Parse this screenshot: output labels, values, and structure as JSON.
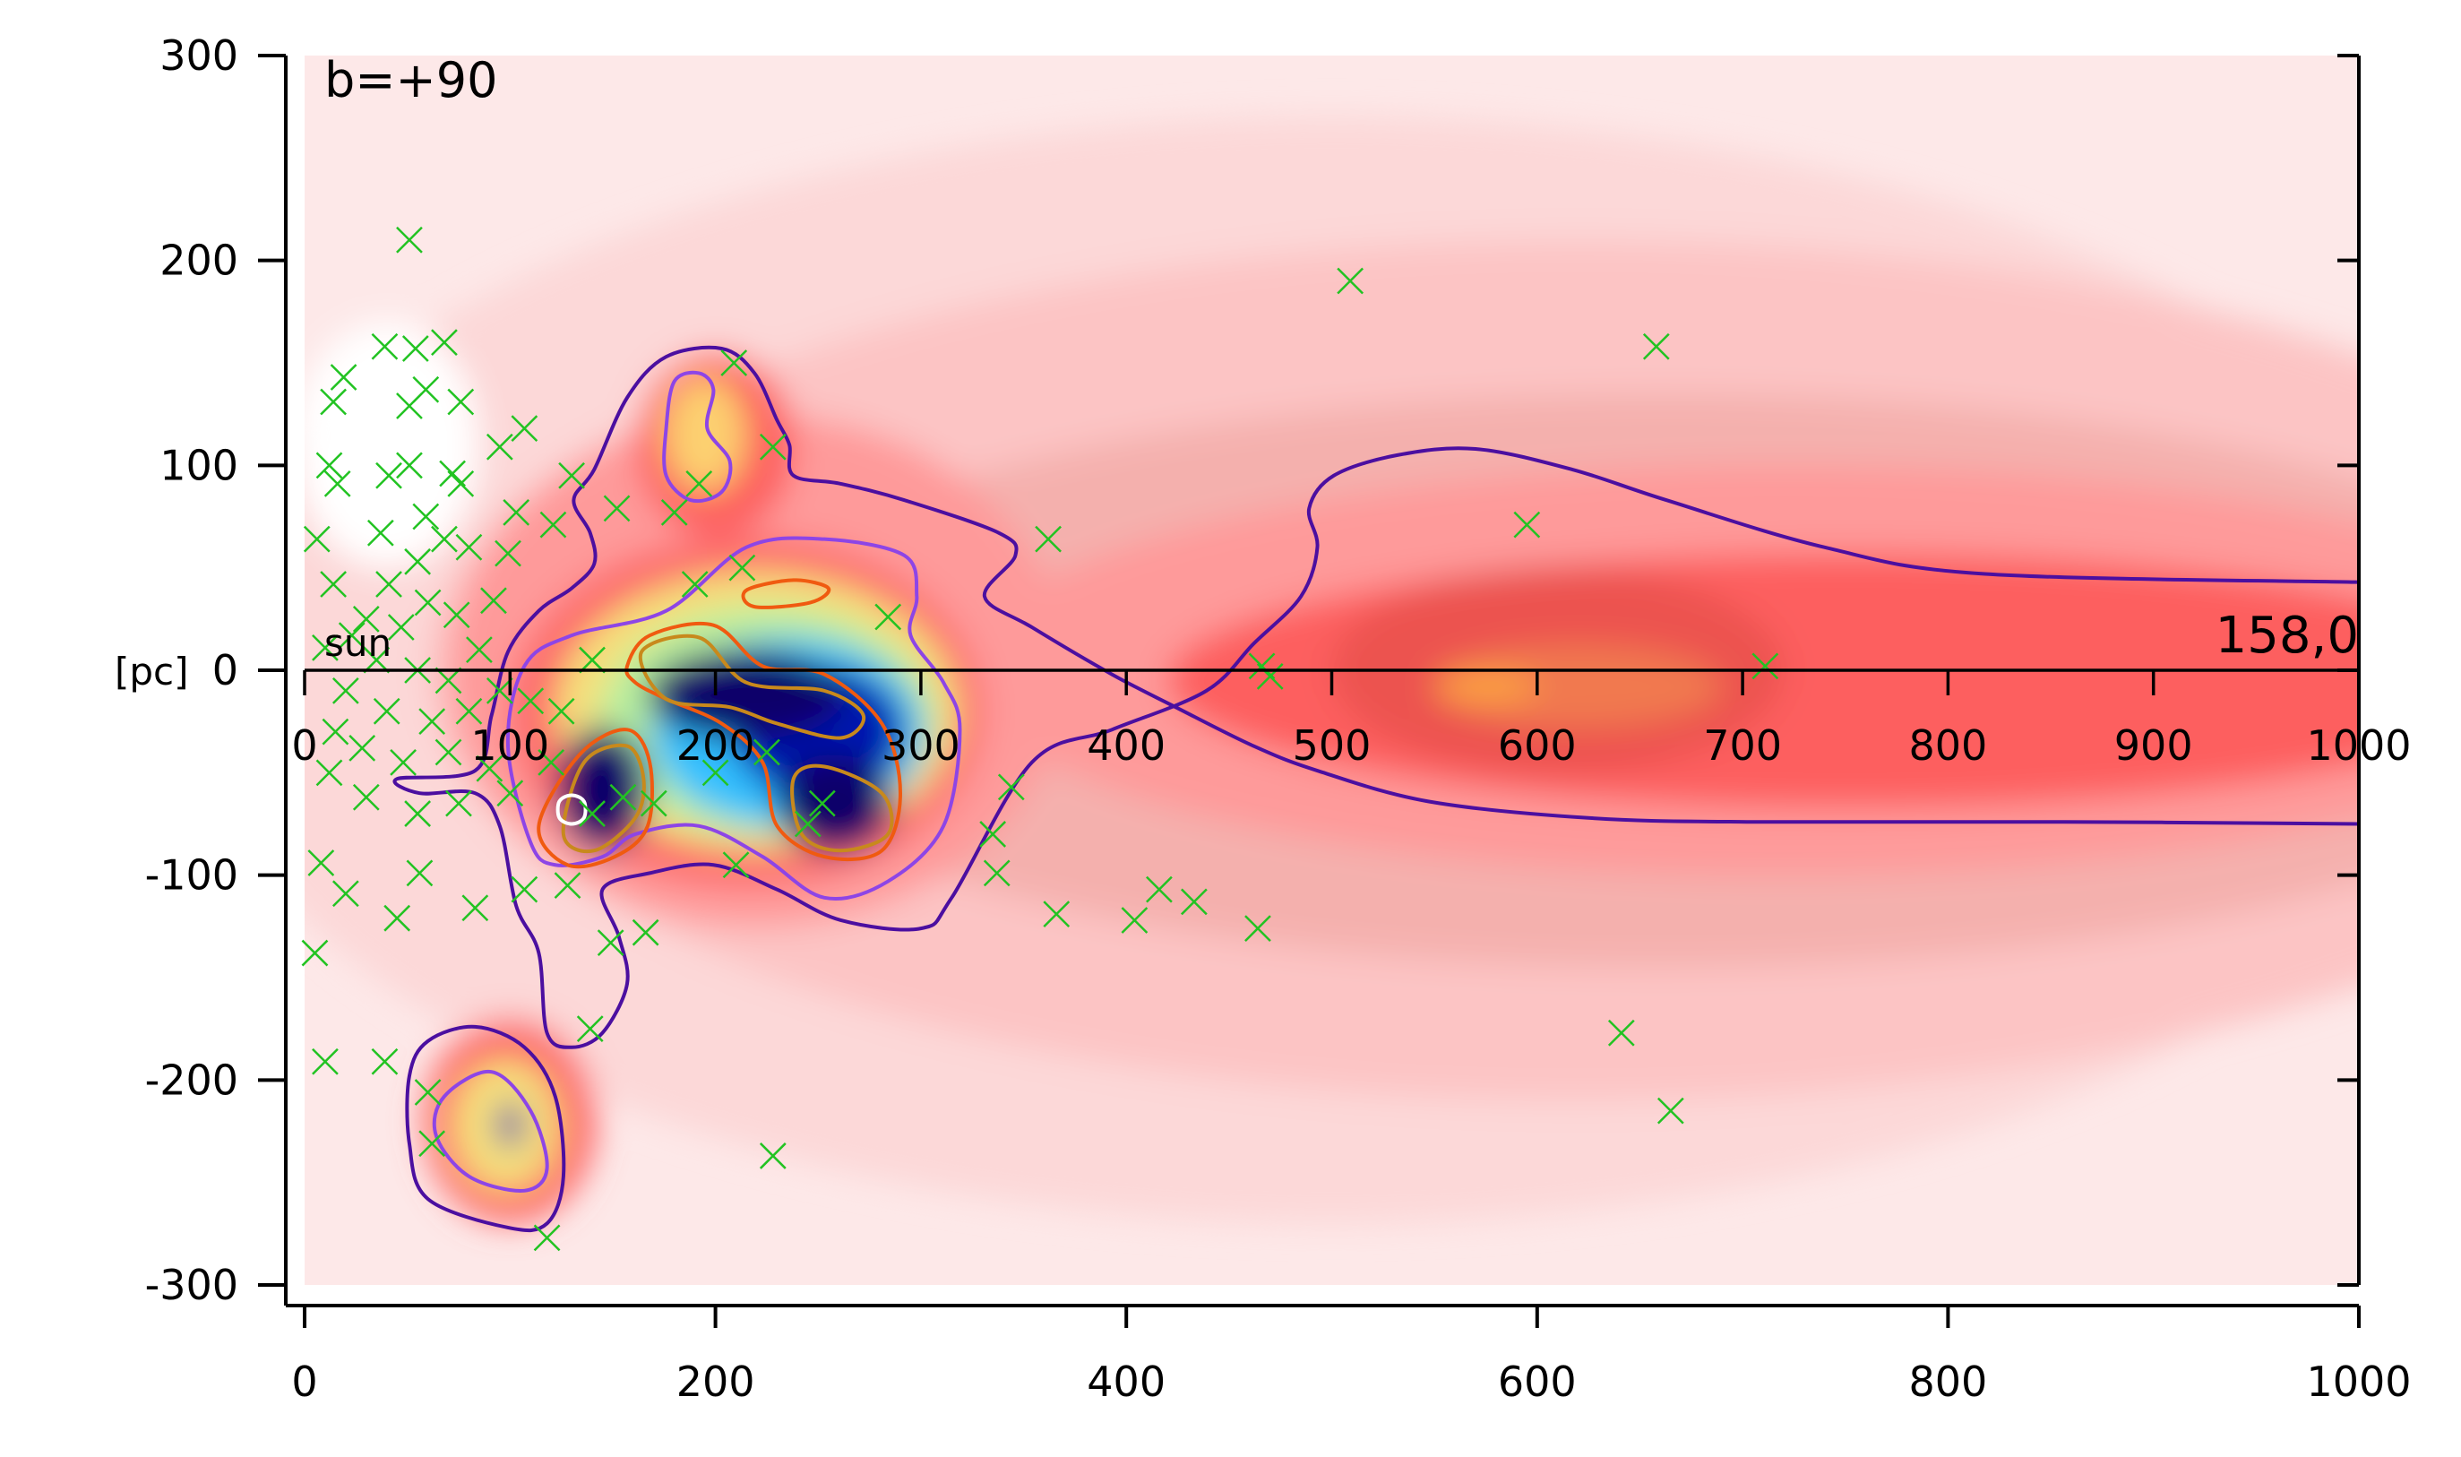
{
  "chart_data": {
    "type": "heatmap",
    "title": "",
    "panel_label": "b=+90",
    "origin_label": "sun",
    "unit_label": "[pc]",
    "corner_annotation": "158,0",
    "xlabel": "",
    "ylabel": "[pc]",
    "xlim": [
      0,
      1000
    ],
    "ylim": [
      -300,
      300
    ],
    "bottom_x_ticks": [
      "0",
      "200",
      "400",
      "600",
      "800",
      "1000"
    ],
    "bottom_x_tick_values": [
      0,
      200,
      400,
      600,
      800,
      1000
    ],
    "inner_x_ticks": [
      "0",
      "100",
      "200",
      "300",
      "400",
      "500",
      "600",
      "700",
      "800",
      "900",
      "1000"
    ],
    "inner_x_tick_values": [
      0,
      100,
      200,
      300,
      400,
      500,
      600,
      700,
      800,
      900,
      1000
    ],
    "y_ticks": [
      "300",
      "200",
      "100",
      "0",
      "-100",
      "-200",
      "-300"
    ],
    "y_tick_values": [
      300,
      200,
      100,
      0,
      -100,
      -200,
      -300
    ],
    "colors": {
      "scatter": "#22c322",
      "contour_outer": "#4b0fa0",
      "contour_mid": "#8d45e6",
      "contour_orange": "#f05a10",
      "contour_gold": "#c8891c",
      "contour_white": "#ffffff"
    },
    "density_blobs": [
      {
        "x": 500,
        "y": 0,
        "rx": 560,
        "ry": 270,
        "color": "#fcd8d8"
      },
      {
        "x": 620,
        "y": 0,
        "rx": 560,
        "ry": 210,
        "color": "#fcc4c4"
      },
      {
        "x": 660,
        "y": -5,
        "rx": 480,
        "ry": 140,
        "color": "#f4b0ad"
      },
      {
        "x": 720,
        "y": 0,
        "rx": 400,
        "ry": 100,
        "color": "#fe9a9a"
      },
      {
        "x": 750,
        "y": -5,
        "rx": 330,
        "ry": 62,
        "color": "#fd5f5f"
      },
      {
        "x": 610,
        "y": 0,
        "rx": 110,
        "ry": 50,
        "color": "#ec524f"
      },
      {
        "x": 620,
        "y": -8,
        "rx": 70,
        "ry": 20,
        "color": "#f17950"
      },
      {
        "x": 575,
        "y": -8,
        "rx": 25,
        "ry": 8,
        "color": "#fca040"
      },
      {
        "x": 40,
        "y": 110,
        "rx": 45,
        "ry": 60,
        "color": "#ffffff"
      },
      {
        "x": 220,
        "y": 0,
        "rx": 150,
        "ry": 125,
        "color": "#fe9a9a"
      },
      {
        "x": 200,
        "y": 110,
        "rx": 38,
        "ry": 45,
        "color": "#fd5f5f"
      },
      {
        "x": 195,
        "y": 115,
        "rx": 20,
        "ry": 28,
        "color": "#fcd070"
      },
      {
        "x": 215,
        "y": -20,
        "rx": 115,
        "ry": 85,
        "color": "#fd6a6a"
      },
      {
        "x": 220,
        "y": -20,
        "rx": 98,
        "ry": 68,
        "color": "#f6e07a"
      },
      {
        "x": 225,
        "y": -25,
        "rx": 82,
        "ry": 56,
        "color": "#b8f0a0"
      },
      {
        "x": 235,
        "y": -30,
        "rx": 66,
        "ry": 46,
        "color": "#30c0ff"
      },
      {
        "x": 250,
        "y": -30,
        "rx": 42,
        "ry": 32,
        "color": "#0018b0"
      },
      {
        "x": 215,
        "y": -12,
        "rx": 48,
        "ry": 22,
        "color": "#07006b"
      },
      {
        "x": 258,
        "y": -65,
        "rx": 28,
        "ry": 24,
        "color": "#07006b"
      },
      {
        "x": 145,
        "y": -58,
        "rx": 22,
        "ry": 30,
        "color": "#07006b"
      },
      {
        "x": 100,
        "y": -220,
        "rx": 42,
        "ry": 50,
        "color": "#fd6a6a"
      },
      {
        "x": 98,
        "y": -222,
        "rx": 26,
        "ry": 32,
        "color": "#f6e07a"
      },
      {
        "x": 100,
        "y": -222,
        "rx": 6,
        "ry": 11,
        "color": "#0018b0"
      }
    ],
    "contours": [
      {
        "level": "outer",
        "closed": false,
        "points": [
          [
            1000,
            -75
          ],
          [
            856,
            -74
          ],
          [
            702,
            -74
          ],
          [
            624,
            -72
          ],
          [
            547,
            -64
          ],
          [
            493,
            -49
          ],
          [
            462,
            -37
          ],
          [
            424,
            -18
          ],
          [
            393,
            -2
          ],
          [
            354,
            21
          ],
          [
            331,
            36
          ],
          [
            346,
            56
          ],
          [
            338,
            67
          ],
          [
            292,
            83
          ],
          [
            261,
            91
          ],
          [
            238,
            95
          ],
          [
            236,
            110
          ],
          [
            230,
            122
          ],
          [
            219,
            145
          ],
          [
            203,
            157
          ],
          [
            176,
            153
          ],
          [
            157,
            133
          ],
          [
            141,
            98
          ],
          [
            131,
            83
          ],
          [
            139,
            67
          ],
          [
            141,
            52
          ],
          [
            130,
            40
          ],
          [
            114,
            29
          ],
          [
            99,
            9
          ],
          [
            91,
            -22
          ],
          [
            83,
            -49
          ],
          [
            45,
            -53
          ],
          [
            56,
            -60
          ],
          [
            83,
            -60
          ],
          [
            95,
            -76
          ],
          [
            103,
            -115
          ],
          [
            114,
            -138
          ],
          [
            118,
            -177
          ],
          [
            130,
            -184
          ],
          [
            145,
            -177
          ],
          [
            157,
            -153
          ],
          [
            153,
            -130
          ],
          [
            145,
            -107
          ],
          [
            168,
            -99
          ],
          [
            199,
            -95
          ],
          [
            230,
            -107
          ],
          [
            261,
            -122
          ],
          [
            300,
            -126
          ],
          [
            315,
            -111
          ],
          [
            354,
            -45
          ],
          [
            393,
            -29
          ],
          [
            439,
            -10
          ],
          [
            462,
            13
          ],
          [
            485,
            36
          ],
          [
            493,
            60
          ],
          [
            489,
            79
          ],
          [
            501,
            95
          ],
          [
            532,
            105
          ],
          [
            570,
            108
          ],
          [
            617,
            98
          ],
          [
            663,
            83
          ],
          [
            740,
            60
          ],
          [
            818,
            47
          ],
          [
            1000,
            43
          ]
        ]
      },
      {
        "level": "outer",
        "closed": true,
        "points": [
          [
            51,
            -198
          ],
          [
            60,
            -181
          ],
          [
            83,
            -174
          ],
          [
            107,
            -184
          ],
          [
            122,
            -208
          ],
          [
            126,
            -247
          ],
          [
            118,
            -270
          ],
          [
            99,
            -272
          ],
          [
            60,
            -258
          ],
          [
            51,
            -231
          ]
        ]
      },
      {
        "level": "mid",
        "closed": true,
        "points": [
          [
            99,
            -37
          ],
          [
            107,
            2
          ],
          [
            130,
            17
          ],
          [
            176,
            29
          ],
          [
            215,
            60
          ],
          [
            253,
            64
          ],
          [
            292,
            56
          ],
          [
            298,
            36
          ],
          [
            295,
            17
          ],
          [
            311,
            -6
          ],
          [
            319,
            -29
          ],
          [
            311,
            -76
          ],
          [
            284,
            -103
          ],
          [
            253,
            -111
          ],
          [
            223,
            -91
          ],
          [
            192,
            -76
          ],
          [
            161,
            -80
          ],
          [
            145,
            -91
          ],
          [
            122,
            -95
          ],
          [
            110,
            -84
          ]
        ]
      },
      {
        "level": "mid",
        "closed": true,
        "points": [
          [
            180,
            141
          ],
          [
            192,
            145
          ],
          [
            199,
            137
          ],
          [
            196,
            118
          ],
          [
            207,
            102
          ],
          [
            203,
            87
          ],
          [
            188,
            83
          ],
          [
            176,
            95
          ],
          [
            176,
            118
          ]
        ]
      },
      {
        "level": "mid",
        "closed": true,
        "points": [
          [
            68,
            -208
          ],
          [
            91,
            -196
          ],
          [
            110,
            -215
          ],
          [
            118,
            -243
          ],
          [
            107,
            -254
          ],
          [
            80,
            -247
          ],
          [
            64,
            -227
          ]
        ]
      },
      {
        "level": "orange",
        "closed": true,
        "points": [
          [
            157,
            2
          ],
          [
            168,
            17
          ],
          [
            199,
            22
          ],
          [
            223,
            2
          ],
          [
            253,
            -2
          ],
          [
            281,
            -26
          ],
          [
            290,
            -60
          ],
          [
            281,
            -88
          ],
          [
            253,
            -91
          ],
          [
            230,
            -76
          ],
          [
            223,
            -45
          ],
          [
            203,
            -26
          ],
          [
            176,
            -14
          ],
          [
            161,
            -6
          ]
        ]
      },
      {
        "level": "orange",
        "closed": true,
        "points": [
          [
            134,
            -41
          ],
          [
            157,
            -29
          ],
          [
            168,
            -45
          ],
          [
            167,
            -76
          ],
          [
            151,
            -91
          ],
          [
            128,
            -95
          ],
          [
            114,
            -76
          ]
        ]
      },
      {
        "level": "orange",
        "closed": true,
        "points": [
          [
            215,
            39
          ],
          [
            238,
            44
          ],
          [
            255,
            40
          ],
          [
            246,
            33
          ],
          [
            219,
            31
          ]
        ]
      },
      {
        "level": "gold",
        "closed": true,
        "points": [
          [
            164,
            9
          ],
          [
            192,
            16
          ],
          [
            215,
            -6
          ],
          [
            253,
            -10
          ],
          [
            272,
            -22
          ],
          [
            261,
            -33
          ],
          [
            230,
            -26
          ],
          [
            207,
            -18
          ],
          [
            176,
            -14
          ]
        ]
      },
      {
        "level": "gold",
        "closed": true,
        "points": [
          [
            238,
            -53
          ],
          [
            253,
            -47
          ],
          [
            281,
            -60
          ],
          [
            284,
            -80
          ],
          [
            261,
            -88
          ],
          [
            242,
            -80
          ]
        ]
      },
      {
        "level": "gold",
        "closed": true,
        "points": [
          [
            136,
            -45
          ],
          [
            157,
            -37
          ],
          [
            165,
            -53
          ],
          [
            161,
            -72
          ],
          [
            141,
            -88
          ],
          [
            126,
            -80
          ]
        ]
      },
      {
        "level": "white",
        "closed": true,
        "points": [
          [
            124,
            -64
          ],
          [
            130,
            -61
          ],
          [
            136,
            -64
          ],
          [
            136,
            -72
          ],
          [
            130,
            -75
          ],
          [
            124,
            -72
          ]
        ]
      }
    ],
    "scatter_points": [
      [
        51,
        210
      ],
      [
        39,
        158
      ],
      [
        54,
        157
      ],
      [
        68,
        160
      ],
      [
        19,
        143
      ],
      [
        51,
        129
      ],
      [
        59,
        137
      ],
      [
        14,
        131
      ],
      [
        76,
        131
      ],
      [
        107,
        118
      ],
      [
        95,
        109
      ],
      [
        12,
        100
      ],
      [
        16,
        91
      ],
      [
        41,
        95
      ],
      [
        51,
        100
      ],
      [
        72,
        96
      ],
      [
        76,
        91
      ],
      [
        103,
        77
      ],
      [
        59,
        75
      ],
      [
        37,
        67
      ],
      [
        6,
        64
      ],
      [
        14,
        42
      ],
      [
        41,
        42
      ],
      [
        55,
        53
      ],
      [
        68,
        64
      ],
      [
        80,
        60
      ],
      [
        99,
        57
      ],
      [
        30,
        25
      ],
      [
        47,
        21
      ],
      [
        60,
        33
      ],
      [
        74,
        27
      ],
      [
        92,
        34
      ],
      [
        10,
        11
      ],
      [
        23,
        17
      ],
      [
        35,
        5
      ],
      [
        55,
        0
      ],
      [
        70,
        -5
      ],
      [
        85,
        10
      ],
      [
        20,
        -10
      ],
      [
        40,
        -20
      ],
      [
        62,
        -25
      ],
      [
        80,
        -20
      ],
      [
        95,
        -10
      ],
      [
        110,
        -15
      ],
      [
        125,
        -20
      ],
      [
        140,
        5
      ],
      [
        15,
        -30
      ],
      [
        28,
        -38
      ],
      [
        48,
        -45
      ],
      [
        70,
        -40
      ],
      [
        90,
        -48
      ],
      [
        12,
        -50
      ],
      [
        30,
        -62
      ],
      [
        55,
        -70
      ],
      [
        75,
        -65
      ],
      [
        100,
        -60
      ],
      [
        120,
        -45
      ],
      [
        130,
        95
      ],
      [
        121,
        71
      ],
      [
        152,
        79
      ],
      [
        180,
        77
      ],
      [
        192,
        91
      ],
      [
        209,
        150
      ],
      [
        228,
        109
      ],
      [
        213,
        50
      ],
      [
        190,
        42
      ],
      [
        362,
        64
      ],
      [
        284,
        26
      ],
      [
        595,
        71
      ],
      [
        509,
        190
      ],
      [
        658,
        158
      ],
      [
        711,
        2
      ],
      [
        466,
        2
      ],
      [
        470,
        -3
      ],
      [
        366,
        -119
      ],
      [
        337,
        -99
      ],
      [
        404,
        -122
      ],
      [
        416,
        -107
      ],
      [
        433,
        -113
      ],
      [
        464,
        -126
      ],
      [
        344,
        -57
      ],
      [
        335,
        -80
      ],
      [
        641,
        -177
      ],
      [
        665,
        -215
      ],
      [
        228,
        -237
      ],
      [
        118,
        -277
      ],
      [
        139,
        -175
      ],
      [
        149,
        -133
      ],
      [
        166,
        -128
      ],
      [
        5,
        -138
      ],
      [
        10,
        -191
      ],
      [
        39,
        -191
      ],
      [
        45,
        -121
      ],
      [
        56,
        -99
      ],
      [
        20,
        -109
      ],
      [
        8,
        -94
      ],
      [
        83,
        -116
      ],
      [
        107,
        -107
      ],
      [
        128,
        -105
      ],
      [
        60,
        -206
      ],
      [
        62,
        -231
      ],
      [
        210,
        -95
      ],
      [
        245,
        -75
      ],
      [
        252,
        -65
      ],
      [
        170,
        -65
      ],
      [
        200,
        -50
      ],
      [
        225,
        -40
      ],
      [
        140,
        -70
      ],
      [
        155,
        -62
      ]
    ]
  }
}
